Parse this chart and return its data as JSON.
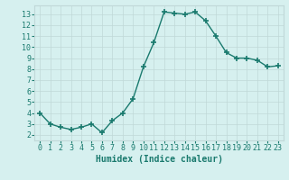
{
  "x": [
    0,
    1,
    2,
    3,
    4,
    5,
    6,
    7,
    8,
    9,
    10,
    11,
    12,
    13,
    14,
    15,
    16,
    17,
    18,
    19,
    20,
    21,
    22,
    23
  ],
  "y": [
    4.0,
    3.0,
    2.7,
    2.5,
    2.7,
    3.0,
    2.2,
    3.3,
    4.0,
    5.3,
    8.2,
    10.4,
    13.2,
    13.1,
    13.0,
    13.2,
    12.4,
    11.0,
    9.5,
    9.0,
    9.0,
    8.8,
    8.2,
    8.3
  ],
  "line_color": "#1a7a6e",
  "marker": "P",
  "marker_size": 3,
  "marker_color": "#1a7a6e",
  "bg_color": "#d6f0ef",
  "grid_color_major": "#c0d8d8",
  "grid_color_minor": "#d0e4e4",
  "xlabel": "Humidex (Indice chaleur)",
  "xlabel_fontsize": 7,
  "tick_fontsize": 6,
  "xlim": [
    -0.5,
    23.5
  ],
  "ylim": [
    1.5,
    13.8
  ],
  "yticks": [
    2,
    3,
    4,
    5,
    6,
    7,
    8,
    9,
    10,
    11,
    12,
    13
  ],
  "xticks": [
    0,
    1,
    2,
    3,
    4,
    5,
    6,
    7,
    8,
    9,
    10,
    11,
    12,
    13,
    14,
    15,
    16,
    17,
    18,
    19,
    20,
    21,
    22,
    23
  ]
}
